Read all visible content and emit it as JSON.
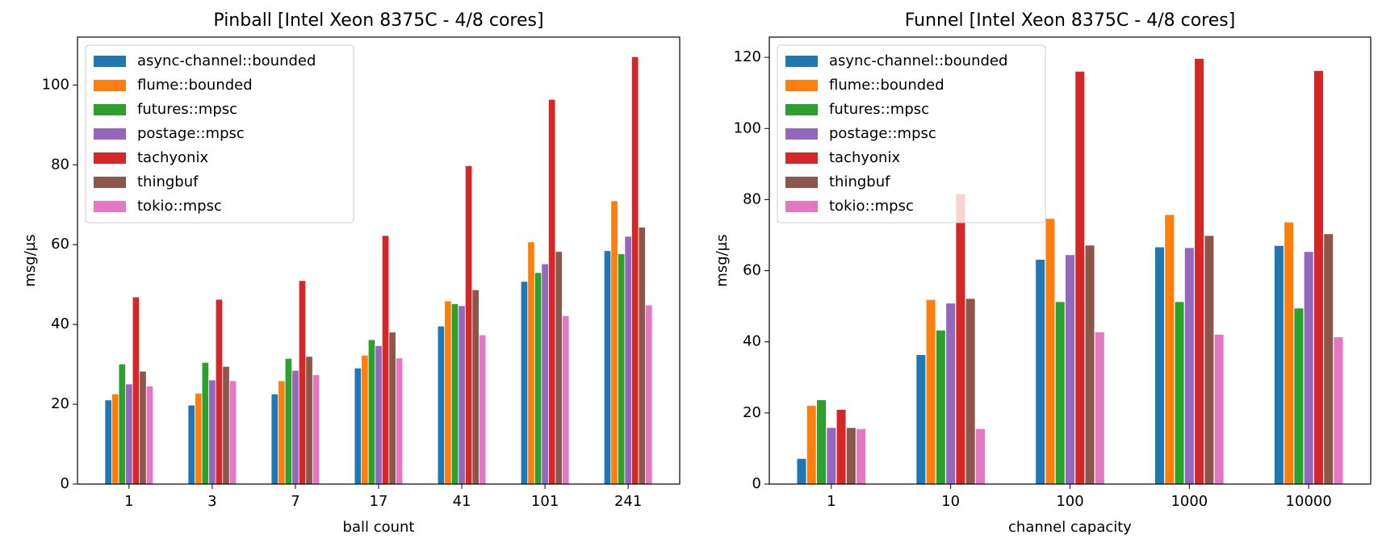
{
  "chart_data": [
    {
      "type": "bar",
      "title": "Pinball [Intel Xeon 8375C - 4/8 cores]",
      "xlabel": "ball count",
      "ylabel": "msg/µs",
      "categories": [
        "1",
        "3",
        "7",
        "17",
        "41",
        "101",
        "241"
      ],
      "series": [
        {
          "name": "async-channel::bounded",
          "color": "#1f77b4",
          "values": [
            21,
            19.7,
            22.5,
            29,
            39.5,
            50.7,
            58.4
          ]
        },
        {
          "name": "flume::bounded",
          "color": "#ff7f0e",
          "values": [
            22.5,
            22.7,
            25.8,
            32.2,
            45.8,
            60.6,
            70.9
          ]
        },
        {
          "name": "futures::mpsc",
          "color": "#2ca02c",
          "values": [
            30,
            30.4,
            31.4,
            36.1,
            45.1,
            52.9,
            57.6
          ]
        },
        {
          "name": "postage::mpsc",
          "color": "#9467bd",
          "values": [
            25,
            26,
            28.4,
            34.6,
            44.6,
            55.1,
            62
          ]
        },
        {
          "name": "tachyonix",
          "color": "#d62728",
          "values": [
            46.8,
            46.2,
            50.9,
            62.2,
            79.7,
            96.3,
            107
          ]
        },
        {
          "name": "thingbuf",
          "color": "#8c564b",
          "values": [
            28.2,
            29.4,
            31.9,
            38,
            48.6,
            58.2,
            64.3
          ]
        },
        {
          "name": "tokio::mpsc",
          "color": "#e377c2",
          "values": [
            24.5,
            25.8,
            27.3,
            31.5,
            37.3,
            42.1,
            44.8
          ]
        }
      ],
      "ylim": [
        0,
        112
      ],
      "yticks": [
        0,
        20,
        40,
        60,
        80,
        100
      ],
      "legend": "upper left"
    },
    {
      "type": "bar",
      "title": "Funnel [Intel Xeon 8375C - 4/8 cores]",
      "xlabel": "channel capacity",
      "ylabel": "msg/µs",
      "categories": [
        "1",
        "10",
        "100",
        "1000",
        "10000"
      ],
      "series": [
        {
          "name": "async-channel::bounded",
          "color": "#1f77b4",
          "values": [
            7.1,
            36.3,
            63.1,
            66.6,
            67
          ]
        },
        {
          "name": "flume::bounded",
          "color": "#ff7f0e",
          "values": [
            22,
            51.8,
            74.6,
            75.7,
            73.6
          ]
        },
        {
          "name": "futures::mpsc",
          "color": "#2ca02c",
          "values": [
            23.6,
            43.2,
            51.2,
            51.2,
            49.4
          ]
        },
        {
          "name": "postage::mpsc",
          "color": "#9467bd",
          "values": [
            15.8,
            50.8,
            64.4,
            66.4,
            65.3
          ]
        },
        {
          "name": "tachyonix",
          "color": "#d62728",
          "values": [
            20.9,
            81.5,
            116,
            119.6,
            116.2
          ]
        },
        {
          "name": "thingbuf",
          "color": "#8c564b",
          "values": [
            15.8,
            52.1,
            67.1,
            69.8,
            70.3
          ]
        },
        {
          "name": "tokio::mpsc",
          "color": "#e377c2",
          "values": [
            15.5,
            15.5,
            42.7,
            42,
            41.3
          ]
        }
      ],
      "ylim": [
        0,
        125.7
      ],
      "yticks": [
        0,
        20,
        40,
        60,
        80,
        100,
        120
      ],
      "legend": "upper left"
    }
  ]
}
